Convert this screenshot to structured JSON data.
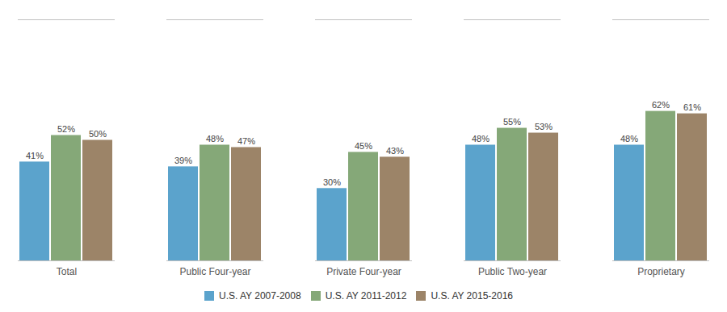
{
  "chart_data": {
    "type": "bar",
    "categories": [
      "Total",
      "Public Four-year",
      "Private Four-year",
      "Public Two-year",
      "Proprietary"
    ],
    "series": [
      {
        "name": "U.S. AY 2007-2008",
        "color": "#5BA3CC",
        "values": [
          41,
          39,
          30,
          48,
          48
        ],
        "value_labels": [
          "41%",
          "39%",
          "30%",
          "48%",
          "48%"
        ]
      },
      {
        "name": "U.S. AY 2011-2012",
        "color": "#85A878",
        "values": [
          52,
          48,
          45,
          55,
          62
        ],
        "value_labels": [
          "52%",
          "48%",
          "45%",
          "55%",
          "62%"
        ]
      },
      {
        "name": "U.S. AY 2015-2016",
        "color": "#9C8468",
        "values": [
          50,
          47,
          43,
          53,
          61
        ],
        "value_labels": [
          "50%",
          "47%",
          "43%",
          "53%",
          "61%"
        ]
      }
    ],
    "ylim": [
      0,
      100
    ],
    "data_labels": true,
    "tick_labels": "x",
    "grid": false,
    "legend": "bottom"
  }
}
